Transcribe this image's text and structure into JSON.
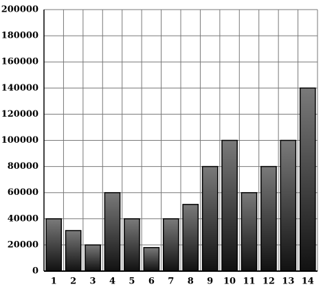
{
  "chart_data": {
    "type": "bar",
    "categories": [
      "1",
      "2",
      "3",
      "4",
      "5",
      "6",
      "7",
      "8",
      "9",
      "10",
      "11",
      "12",
      "13",
      "14"
    ],
    "values": [
      40000,
      31000,
      20000,
      60000,
      40000,
      18000,
      40000,
      51000,
      80000,
      100000,
      60000,
      80000,
      100000,
      140000
    ],
    "color": "#111111",
    "ylim": [
      0,
      200000
    ],
    "yticks": [
      0,
      20000,
      40000,
      60000,
      80000,
      100000,
      120000,
      140000,
      160000,
      180000,
      200000
    ],
    "grid": true
  }
}
